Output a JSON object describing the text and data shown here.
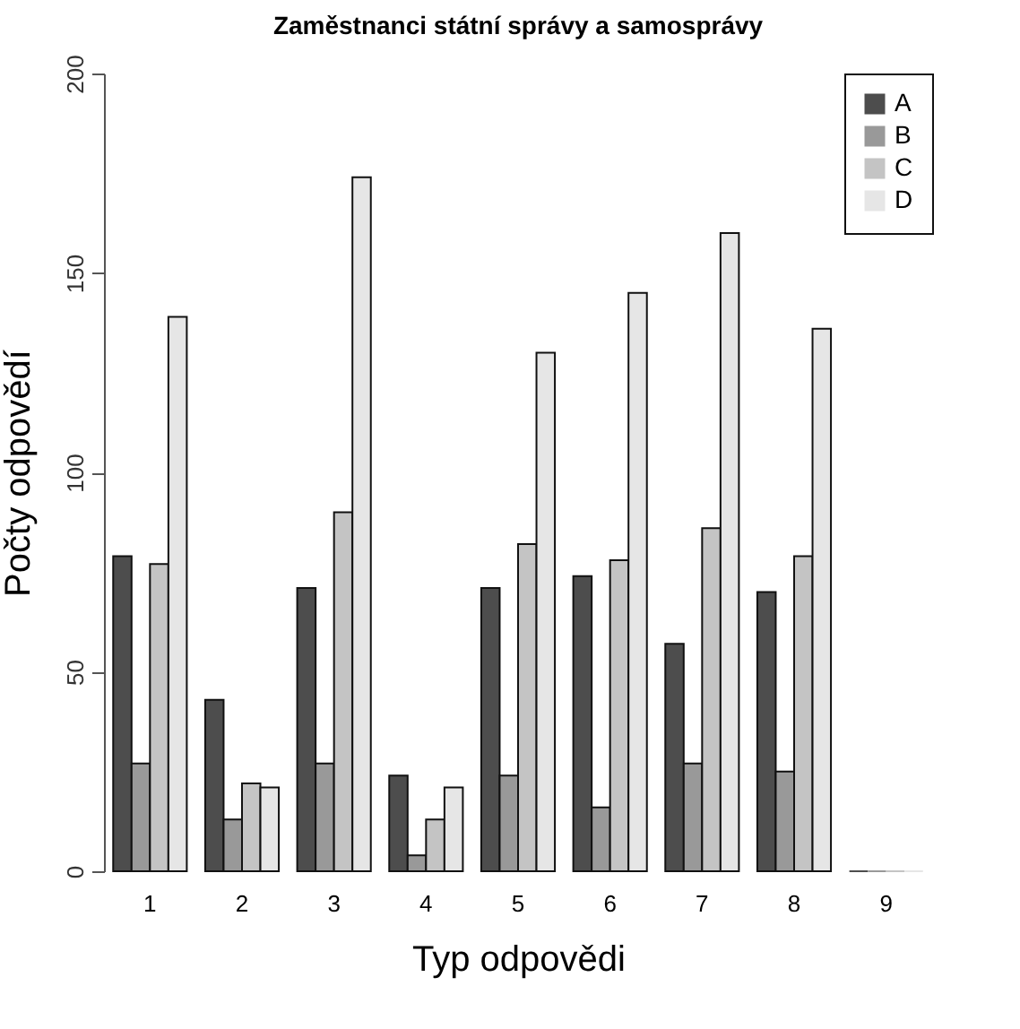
{
  "chart_data": {
    "type": "bar",
    "title": "Zaměstnanci státní správy a samosprávy",
    "xlabel": "Typ odpovědi",
    "ylabel": "Počty odpovědí",
    "categories": [
      "1",
      "2",
      "3",
      "4",
      "5",
      "6",
      "7",
      "8",
      "9"
    ],
    "series": [
      {
        "name": "A",
        "color": "#4d4d4d",
        "values": [
          79,
          43,
          71,
          24,
          71,
          74,
          57,
          70,
          0
        ]
      },
      {
        "name": "B",
        "color": "#999999",
        "values": [
          27,
          13,
          27,
          4,
          24,
          16,
          27,
          25,
          0
        ]
      },
      {
        "name": "C",
        "color": "#c4c4c4",
        "values": [
          77,
          22,
          90,
          13,
          82,
          78,
          86,
          79,
          0
        ]
      },
      {
        "name": "D",
        "color": "#e6e6e6",
        "values": [
          139,
          21,
          174,
          21,
          130,
          145,
          160,
          136,
          0
        ]
      }
    ],
    "ylim": [
      0,
      200
    ],
    "yticks": [
      0,
      50,
      100,
      150,
      200
    ],
    "grid": false,
    "legend": "top right"
  }
}
